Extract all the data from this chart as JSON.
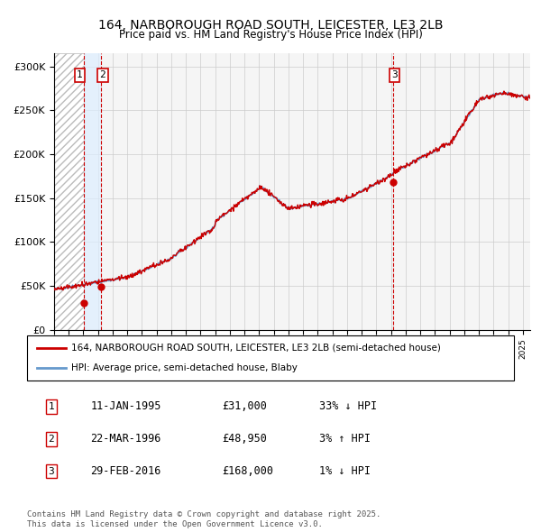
{
  "title": "164, NARBOROUGH ROAD SOUTH, LEICESTER, LE3 2LB",
  "subtitle": "Price paid vs. HM Land Registry's House Price Index (HPI)",
  "ylabel_ticks": [
    "£0",
    "£50K",
    "£100K",
    "£150K",
    "£200K",
    "£250K",
    "£300K"
  ],
  "ytick_values": [
    0,
    50000,
    100000,
    150000,
    200000,
    250000,
    300000
  ],
  "ylim": [
    0,
    315000
  ],
  "xlim_start": 1993.0,
  "xlim_end": 2025.5,
  "hatch_region_start": 1993.0,
  "hatch_region_end": 1996.25,
  "blue_region_start": 1996.0,
  "blue_region_end": 1996.6,
  "sale_dates": [
    1995.03,
    1996.22,
    2016.16
  ],
  "sale_prices": [
    31000,
    48950,
    168000
  ],
  "sale_labels": [
    "1",
    "2",
    "3"
  ],
  "vline1_x": 1995.03,
  "vline2_x": 1996.22,
  "vline3_x": 2016.16,
  "legend_line1": "164, NARBOROUGH ROAD SOUTH, LEICESTER, LE3 2LB (semi-detached house)",
  "legend_line2": "HPI: Average price, semi-detached house, Blaby",
  "table_data": [
    [
      "1",
      "11-JAN-1995",
      "£31,000",
      "33% ↓ HPI"
    ],
    [
      "2",
      "22-MAR-1996",
      "£48,950",
      "3% ↑ HPI"
    ],
    [
      "3",
      "29-FEB-2016",
      "£168,000",
      "1% ↓ HPI"
    ]
  ],
  "footer_text": "Contains HM Land Registry data © Crown copyright and database right 2025.\nThis data is licensed under the Open Government Licence v3.0.",
  "line_color_red": "#cc0000",
  "line_color_blue": "#6699cc",
  "hatch_color": "#cccccc",
  "box_color": "#ddeeff",
  "grid_color": "#cccccc",
  "background_color": "#f0f0f0",
  "plot_bg_color": "#f5f5f5"
}
